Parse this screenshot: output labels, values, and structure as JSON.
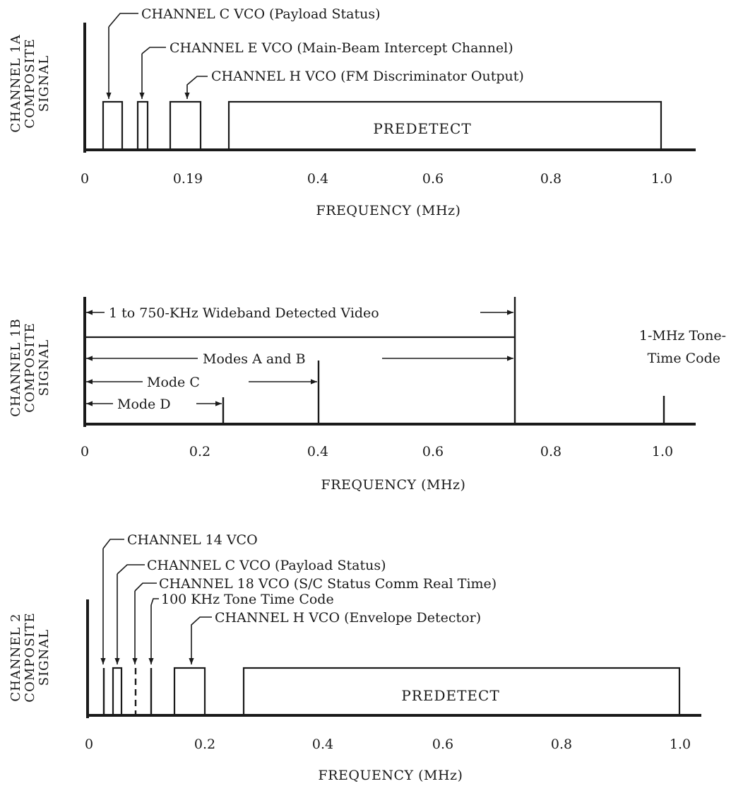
{
  "panels": [
    {
      "ylabel": [
        "CHANNEL 1A",
        "COMPOSITE",
        "SIGNAL"
      ],
      "xlabel": "FREQUENCY (MHz)",
      "ticks": [
        "0",
        "0.19",
        "0.4",
        "0.6",
        "0.8",
        "1.0"
      ],
      "labels": [
        "CHANNEL C VCO (Payload Status)",
        "CHANNEL E VCO (Main-Beam Intercept Channel)",
        "CHANNEL H VCO (FM Discriminator Output)"
      ],
      "predetect": "PREDETECT"
    },
    {
      "ylabel": [
        "CHANNEL 1B",
        "COMPOSITE",
        "SIGNAL"
      ],
      "xlabel": "FREQUENCY (MHz)",
      "ticks": [
        "0",
        "0.2",
        "0.4",
        "0.6",
        "0.8",
        "1.0"
      ],
      "video": "1 to 750-KHz Wideband Detected Video",
      "modes_ab": "Modes A and B",
      "mode_c": "Mode C",
      "mode_d": "Mode D",
      "tone_line1": "1-MHz Tone-",
      "tone_line2": "Time  Code"
    },
    {
      "ylabel": [
        "CHANNEL 2",
        "COMPOSITE",
        "SIGNAL"
      ],
      "xlabel": "FREQUENCY (MHz)",
      "ticks": [
        "0",
        "0.2",
        "0.4",
        "0.6",
        "0.8",
        "1.0"
      ],
      "labels": [
        "CHANNEL 14 VCO",
        "CHANNEL C VCO (Payload Status)",
        "CHANNEL 18 VCO (S/C Status Comm Real Time)",
        "100 KHz Tone Time Code",
        "CHANNEL H VCO (Envelope Detector)"
      ],
      "predetect": "PREDETECT"
    }
  ]
}
